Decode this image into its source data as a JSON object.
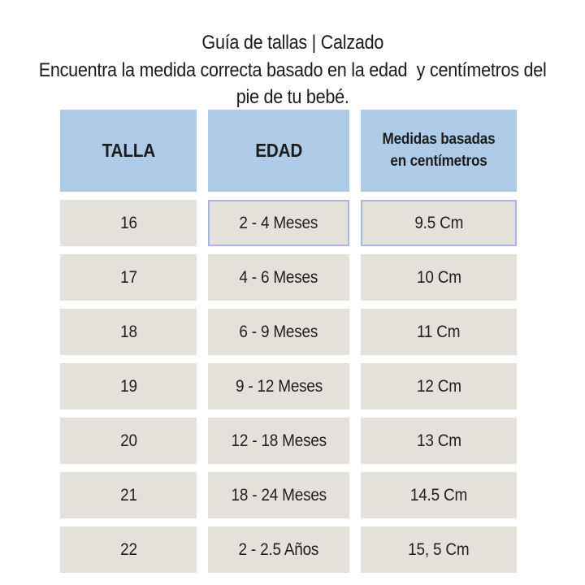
{
  "header": {
    "title": "Guía de tallas | Calzado",
    "subtitle_lines": [
      "Encuentra la medida correcta basado en la edad  y centímetros del",
      "pie de tu bebé."
    ]
  },
  "colors": {
    "page_background": "#ffffff",
    "header_cell_background": "#aecbe8",
    "data_cell_background": "#e4e1da",
    "highlight_border": "#aab5e4",
    "text": "#1c1c1c"
  },
  "chart_data": {
    "type": "table",
    "title": "Guía de tallas | Calzado",
    "subtitle": "Encuentra la medida correcta basado en la edad y centímetros del pie de tu bebé.",
    "columns": [
      "TALLA",
      "EDAD",
      "Medidas basadas en centímetros"
    ],
    "rows": [
      [
        "16",
        "2 - 4 Meses",
        "9.5 Cm"
      ],
      [
        "17",
        "4 - 6 Meses",
        "10 Cm"
      ],
      [
        "18",
        "6 - 9 Meses",
        "11 Cm"
      ],
      [
        "19",
        "9 - 12 Meses",
        "12 Cm"
      ],
      [
        "20",
        "12 - 18 Meses",
        "13 Cm"
      ],
      [
        "21",
        "18 - 24 Meses",
        "14.5 Cm"
      ],
      [
        "22",
        "2 - 2.5 Años",
        "15, 5 Cm"
      ]
    ],
    "highlighted_cells": [
      {
        "row": 0,
        "column": 1
      },
      {
        "row": 0,
        "column": 2
      }
    ],
    "layout": {
      "header_row": true,
      "grid": "separated-cells"
    }
  }
}
